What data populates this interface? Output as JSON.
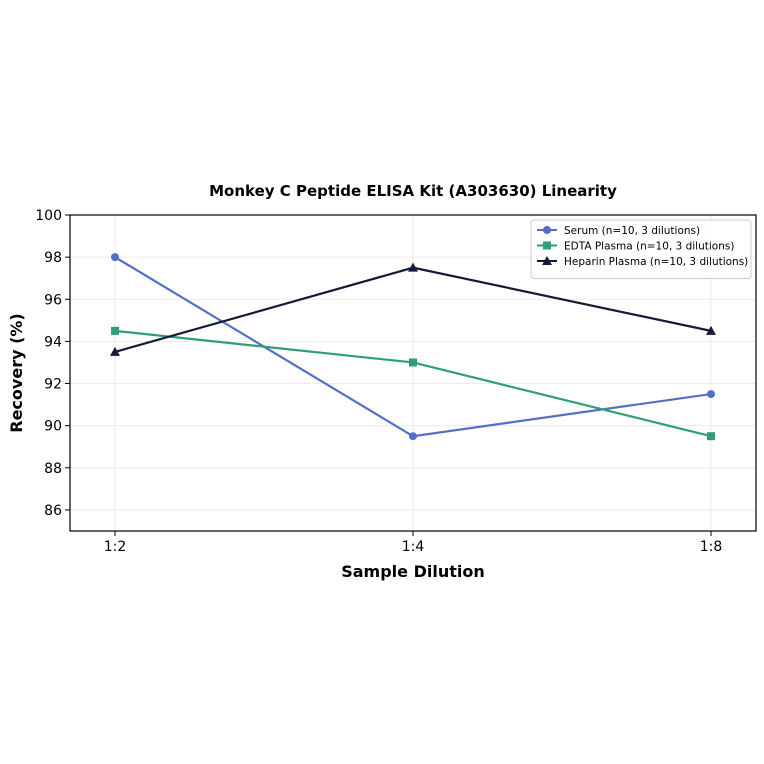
{
  "chart_data": {
    "type": "line",
    "title": "Monkey C Peptide ELISA Kit (A303630) Linearity",
    "xlabel": "Sample Dilution",
    "ylabel": "Recovery (%)",
    "categories": [
      "1:2",
      "1:4",
      "1:8"
    ],
    "ylim": [
      85,
      100
    ],
    "yticks": [
      86,
      88,
      90,
      92,
      94,
      96,
      98,
      100
    ],
    "grid": true,
    "legend_position": "top-right",
    "series": [
      {
        "name": "Serum (n=10, 3 dilutions)",
        "values": [
          98.0,
          89.5,
          91.5
        ],
        "color": "#5470c6",
        "marker": "circle"
      },
      {
        "name": "EDTA Plasma (n=10, 3 dilutions)",
        "values": [
          94.5,
          93.0,
          89.5
        ],
        "color": "#2e9e7a",
        "marker": "square"
      },
      {
        "name": "Heparin Plasma (n=10, 3 dilutions)",
        "values": [
          93.5,
          97.5,
          94.5
        ],
        "color": "#141a38",
        "marker": "triangle"
      }
    ]
  }
}
